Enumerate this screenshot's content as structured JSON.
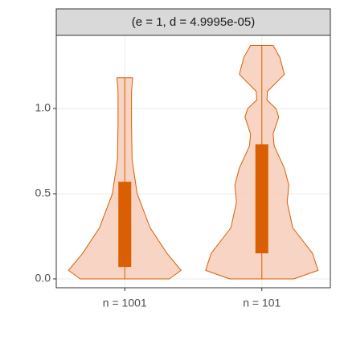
{
  "chart_data": {
    "type": "violin",
    "title": "(e = 1, d = 4.9995e-05)",
    "categories": [
      "n = 1001",
      "n = 101"
    ],
    "ylim": [
      -0.052,
      1.429
    ],
    "yticks": [
      {
        "value": 0,
        "label": "0.0"
      },
      {
        "value": 0.5,
        "label": "0.5"
      },
      {
        "value": 1,
        "label": "1.0"
      }
    ],
    "grid": true,
    "color": "#d95f02",
    "fill": "#f6cdb9",
    "violins": [
      {
        "y": [
          0.0,
          0.05,
          0.15,
          0.3,
          0.5,
          0.7,
          0.9,
          1.1,
          1.18
        ],
        "density": [
          0.79,
          1.0,
          0.75,
          0.45,
          0.22,
          0.13,
          0.12,
          0.12,
          0.14
        ],
        "q1": 0.07,
        "q3": 0.57
      },
      {
        "y": [
          0.0,
          0.05,
          0.15,
          0.3,
          0.45,
          0.55,
          0.65,
          0.78,
          0.85,
          0.95,
          1.0,
          1.05,
          1.1,
          1.2,
          1.3,
          1.37
        ],
        "density": [
          0.57,
          1.0,
          0.9,
          0.55,
          0.45,
          0.48,
          0.4,
          0.22,
          0.2,
          0.3,
          0.25,
          0.09,
          0.1,
          0.4,
          0.32,
          0.2
        ],
        "q1": 0.15,
        "q3": 0.79
      }
    ]
  }
}
